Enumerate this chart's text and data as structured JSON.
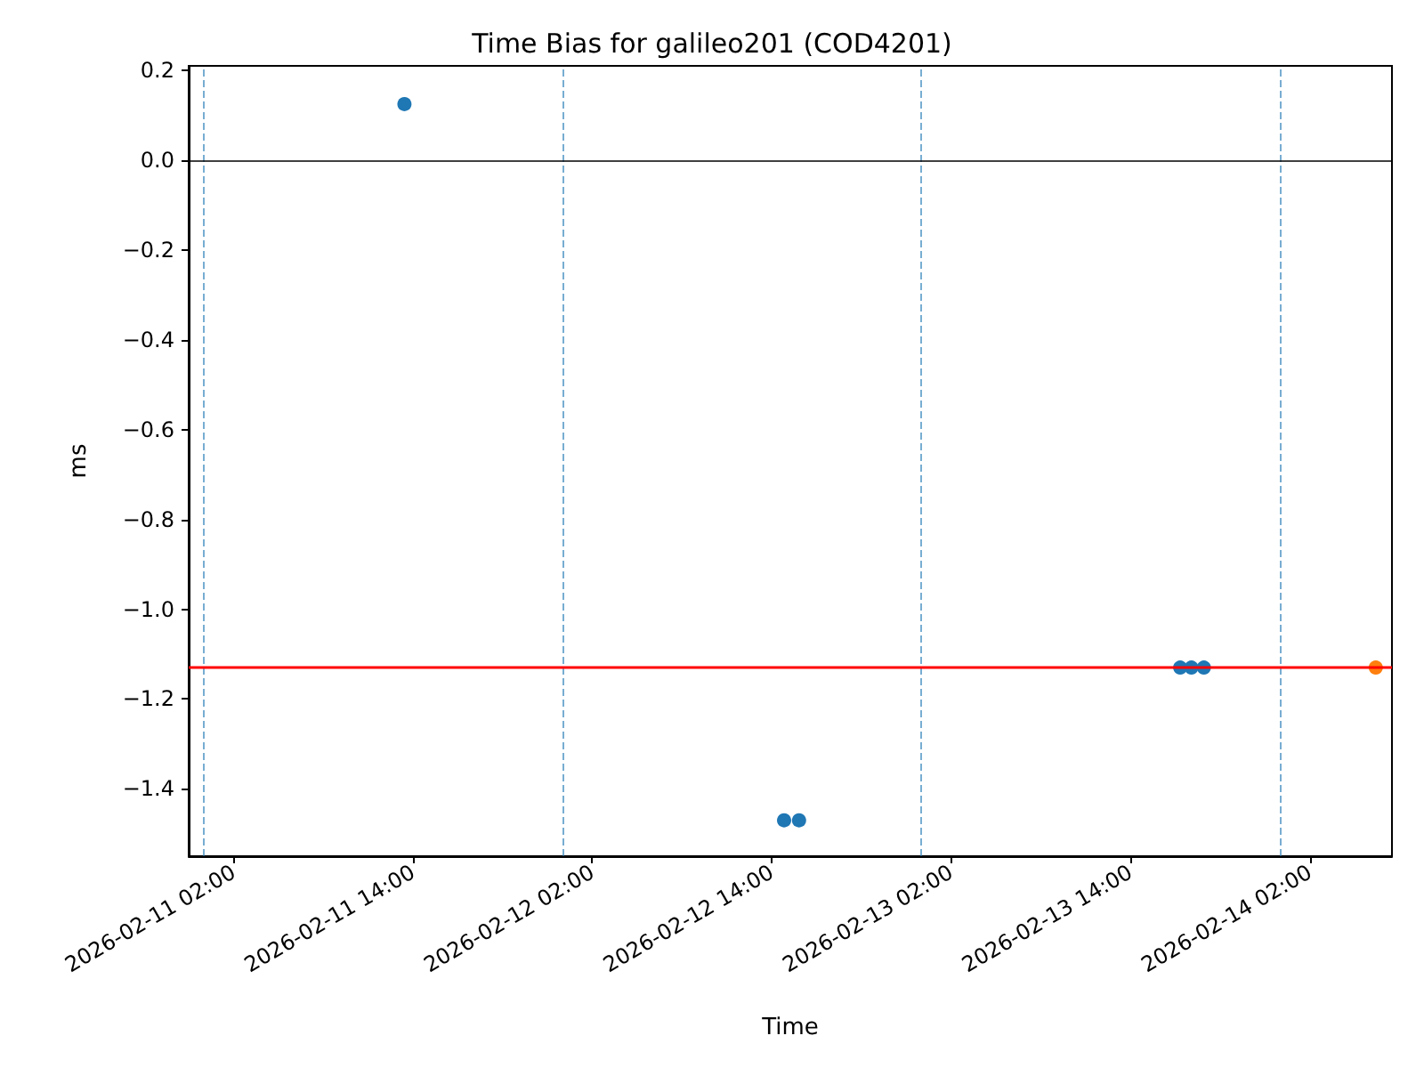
{
  "chart_data": {
    "type": "scatter",
    "title": "Time Bias for galileo201 (COD4201)",
    "xlabel": "Time",
    "ylabel": "ms",
    "xlim": [
      "2026-02-10T23:00",
      "2026-02-14T07:30"
    ],
    "xticks": [
      {
        "value": "2026-02-11T02:00",
        "label": "2026-02-11 02:00"
      },
      {
        "value": "2026-02-11T14:00",
        "label": "2026-02-11 14:00"
      },
      {
        "value": "2026-02-12T02:00",
        "label": "2026-02-12 02:00"
      },
      {
        "value": "2026-02-12T14:00",
        "label": "2026-02-12 14:00"
      },
      {
        "value": "2026-02-13T02:00",
        "label": "2026-02-13 02:00"
      },
      {
        "value": "2026-02-13T14:00",
        "label": "2026-02-13 14:00"
      },
      {
        "value": "2026-02-14T02:00",
        "label": "2026-02-14 02:00"
      }
    ],
    "ylim": [
      -1.55,
      0.21
    ],
    "yticks": [
      -1.4,
      -1.2,
      {
        "value": -1,
        "label": "−1.0"
      },
      -0.8,
      -0.6,
      -0.4,
      -0.2,
      {
        "value": 0,
        "label": "0.0"
      },
      0.2
    ],
    "marker": "circle",
    "series": [
      {
        "color": "#1f77b4",
        "x": [
          "2026-02-11T13:26",
          "2026-02-12T14:50",
          "2026-02-12T15:50",
          "2026-02-13T17:20",
          "2026-02-13T18:05",
          "2026-02-13T18:55"
        ],
        "values": [
          0.125,
          -1.47,
          -1.47,
          -1.13,
          -1.13,
          -1.13
        ]
      },
      {
        "color": "#ff7f0e",
        "x": [
          "2026-02-14T06:25"
        ],
        "values": [
          -1.13
        ]
      }
    ],
    "ref_lines": [
      {
        "axis": "x",
        "value": "2026-02-11T00:00",
        "color": "#1f77b4",
        "line_style": "dashed"
      },
      {
        "axis": "x",
        "value": "2026-02-12T00:00",
        "color": "#1f77b4",
        "line_style": "dashed"
      },
      {
        "axis": "x",
        "value": "2026-02-13T00:00",
        "color": "#1f77b4",
        "line_style": "dashed"
      },
      {
        "axis": "x",
        "value": "2026-02-14T00:00",
        "color": "#1f77b4",
        "line_style": "dashed"
      },
      {
        "axis": "y",
        "value": 0,
        "color": "#000000",
        "line_style": "solid"
      },
      {
        "axis": "y",
        "value": -1.13,
        "color": "#ff0000",
        "line_style": "solid"
      }
    ]
  }
}
